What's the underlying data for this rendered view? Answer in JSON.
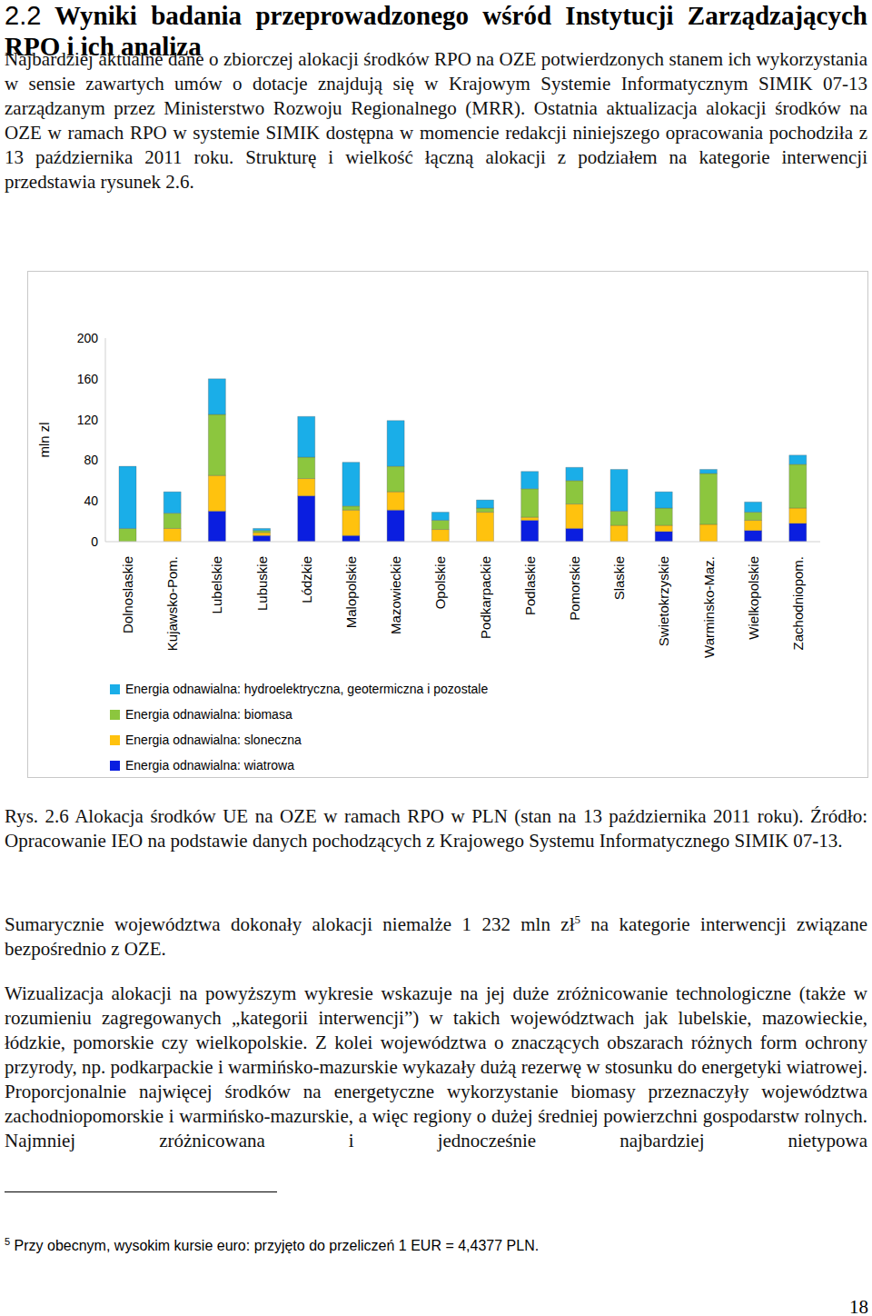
{
  "heading": {
    "number": "2.2",
    "title": "Wyniki badania przeprowadzonego wśród Instytucji Zarządzających RPO i ich analiza"
  },
  "paragraphs_top": [
    "Najbardziej aktualne dane o zbiorczej alokacji środków RPO na OZE potwierdzonych stanem ich wykorzystania w sensie zawartych umów o dotacje znajdują się w Krajowym Systemie Informatycznym SIMIK 07-13 zarządzanym przez Ministerstwo Rozwoju Regionalnego (MRR). Ostatnia aktualizacja alokacji środków na OZE w ramach RPO w systemie SIMIK dostępna w momencie redakcji niniejszego opracowania pochodziła z 13 października 2011 roku. Strukturę i wielkość łączną alokacji z podziałem na kategorie interwencji przedstawia rysunek 2.6."
  ],
  "chart_data": {
    "type": "bar",
    "stacked": true,
    "grid": false,
    "y_label": "mln zl",
    "categories": [
      "Dolnoslaskie",
      "Kujawsko-Pom.",
      "Lubelskie",
      "Lubuskie",
      "Lódzkie",
      "Malopolskie",
      "Mazowieckie",
      "Opolskie",
      "Podkarpackie",
      "Podlaskie",
      "Pomorskie",
      "Slaskie",
      "Swietokrzyskie",
      "Warminsko-Maz.",
      "Wielkopolskie",
      "Zachodniopom."
    ],
    "ylim": [
      0,
      200
    ],
    "yticks": [
      0,
      40,
      80,
      120,
      160,
      200
    ],
    "series": [
      {
        "name": "Energia odnawialna: hydroelektryczna, geotermiczna i pozostale",
        "color": "#1aaee8",
        "values": [
          61,
          21,
          35,
          2,
          40,
          43,
          45,
          8,
          8,
          17,
          13,
          41,
          16,
          4,
          10,
          9
        ]
      },
      {
        "name": "Energia odnawialna: biomasa",
        "color": "#8cc63e",
        "values": [
          13,
          15,
          60,
          2,
          21,
          4,
          25,
          9,
          4,
          28,
          23,
          14,
          17,
          50,
          8,
          43
        ]
      },
      {
        "name": "Energia odnawialna: sloneczna",
        "color": "#ffc20e",
        "values": [
          0,
          13,
          35,
          3,
          17,
          25,
          18,
          12,
          29,
          3,
          24,
          16,
          6,
          17,
          10,
          15
        ]
      },
      {
        "name": "Energia odnawialna: wiatrowa",
        "color": "#0a1ee0",
        "values": [
          0,
          0,
          30,
          6,
          45,
          6,
          31,
          0,
          0,
          21,
          13,
          0,
          10,
          0,
          11,
          18
        ]
      }
    ]
  },
  "caption": "Rys. 2.6 Alokacja środków UE na OZE w ramach RPO w PLN (stan na 13 października 2011 roku). Źródło: Opracowanie IEO na podstawie danych pochodzących z Krajowego Systemu Informatycznego SIMIK 07-13.",
  "summary": {
    "text_before": "Sumarycznie województwa dokonały alokacji niemalże 1 232 mln zł",
    "footnote_ref": "5",
    "text_after": " na kategorie interwencji związane bezpośrednio z OZE."
  },
  "paragraph_bottom": "Wizualizacja alokacji na powyższym wykresie wskazuje na jej duże zróżnicowanie technologiczne (także w rozumieniu zagregowanych „kategorii interwencji”) w takich województwach jak lubelskie, mazowieckie, łódzkie, pomorskie czy wielkopolskie. Z kolei województwa o znaczących obszarach różnych form ochrony przyrody, np. podkarpackie i warmińsko-mazurskie wykazały dużą rezerwę w stosunku do energetyki wiatrowej. Proporcjonalnie najwięcej środków na energetyczne wykorzystanie biomasy przeznaczyły województwa zachodniopomorskie i warmińsko-mazurskie, a więc regiony o dużej średniej powierzchni gospodarstw rolnych. Najmniej zróżnicowana i jednocześnie najbardziej nietypowa",
  "footnote": {
    "mark": "5",
    "text": "Przy obecnym, wysokim kursie euro: przyjęto do przeliczeń 1 EUR = 4,4377 PLN."
  },
  "page_number": "18"
}
